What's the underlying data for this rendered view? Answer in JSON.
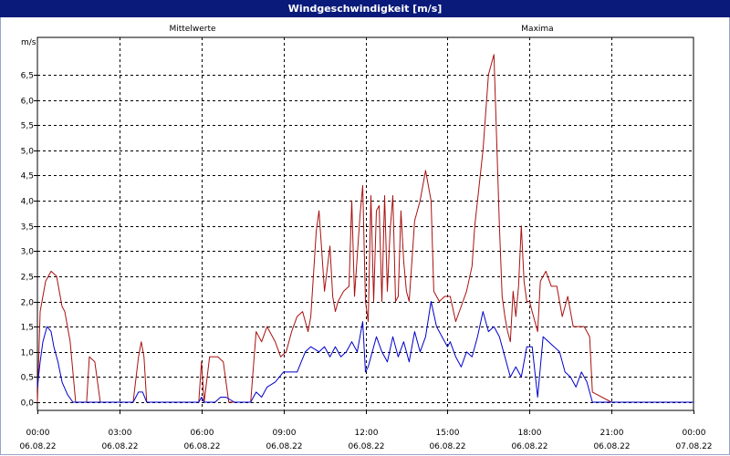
{
  "window": {
    "title": "Windgeschwindigkeit [m/s]"
  },
  "chart_data": {
    "type": "line",
    "title": "Windgeschwindigkeit [m/s]",
    "ylabel": "m/s",
    "ylim": [
      0,
      7
    ],
    "xlim": [
      0,
      24
    ],
    "grid": true,
    "y_ticks": [
      "0,0",
      "0,5",
      "1,0",
      "1,5",
      "2,0",
      "2,5",
      "3,0",
      "3,5",
      "4,0",
      "4,5",
      "5,0",
      "5,5",
      "6,0",
      "6,5"
    ],
    "x_ticks": [
      {
        "time": "00:00",
        "date": "06.08.22"
      },
      {
        "time": "03:00",
        "date": "06.08.22"
      },
      {
        "time": "06:00",
        "date": "06.08.22"
      },
      {
        "time": "09:00",
        "date": "06.08.22"
      },
      {
        "time": "12:00",
        "date": "06.08.22"
      },
      {
        "time": "15:00",
        "date": "06.08.22"
      },
      {
        "time": "18:00",
        "date": "06.08.22"
      },
      {
        "time": "21:00",
        "date": "06.08.22"
      },
      {
        "time": "00:00",
        "date": "07.08.22"
      }
    ],
    "series": [
      {
        "name": "Mittelwerte",
        "color": "#0000cc",
        "x": [
          0,
          0.1,
          0.2,
          0.35,
          0.5,
          0.6,
          0.75,
          0.9,
          1.1,
          1.3,
          1.5,
          1.7,
          2.0,
          2.5,
          3.0,
          3.5,
          3.7,
          3.85,
          4.0,
          4.2,
          4.5,
          5.0,
          5.5,
          5.9,
          6.0,
          6.1,
          6.5,
          6.7,
          6.9,
          7.2,
          7.5,
          7.8,
          8.0,
          8.2,
          8.4,
          8.7,
          9.0,
          9.2,
          9.5,
          9.8,
          10.0,
          10.3,
          10.5,
          10.7,
          10.9,
          11.1,
          11.3,
          11.5,
          11.7,
          11.8,
          11.9,
          12.0,
          12.1,
          12.2,
          12.4,
          12.6,
          12.8,
          13.0,
          13.2,
          13.4,
          13.6,
          13.8,
          14.0,
          14.2,
          14.4,
          14.6,
          14.8,
          15.0,
          15.1,
          15.3,
          15.5,
          15.7,
          15.9,
          16.1,
          16.3,
          16.5,
          16.7,
          16.9,
          17.1,
          17.3,
          17.5,
          17.7,
          17.9,
          18.1,
          18.3,
          18.5,
          18.7,
          18.9,
          19.1,
          19.3,
          19.5,
          19.7,
          19.9,
          20.0,
          20.1,
          20.3,
          21.0,
          22.0,
          23.0,
          24.0
        ],
        "values": [
          0.3,
          0.8,
          1.2,
          1.5,
          1.4,
          1.1,
          0.8,
          0.4,
          0.15,
          0.0,
          0.0,
          0.0,
          0.0,
          0.0,
          0.0,
          0.0,
          0.2,
          0.2,
          0.0,
          0.0,
          0.0,
          0.0,
          0.0,
          0.0,
          0.1,
          0.0,
          0.0,
          0.1,
          0.1,
          0.0,
          0.0,
          0.0,
          0.2,
          0.1,
          0.3,
          0.4,
          0.6,
          0.6,
          0.6,
          1.0,
          1.1,
          1.0,
          1.1,
          0.9,
          1.1,
          0.9,
          1.0,
          1.2,
          1.0,
          1.3,
          1.6,
          0.6,
          0.7,
          0.9,
          1.3,
          1.0,
          0.8,
          1.3,
          0.9,
          1.2,
          0.8,
          1.4,
          1.0,
          1.3,
          2.0,
          1.5,
          1.3,
          1.1,
          1.2,
          0.9,
          0.7,
          1.0,
          0.9,
          1.3,
          1.8,
          1.4,
          1.5,
          1.3,
          0.9,
          0.5,
          0.7,
          0.5,
          1.1,
          1.1,
          0.1,
          1.3,
          1.2,
          1.1,
          1.0,
          0.6,
          0.5,
          0.3,
          0.6,
          0.5,
          0.4,
          0.0,
          0.0,
          0.0,
          0.0,
          0.0
        ]
      },
      {
        "name": "Maxima",
        "color": "#aa1111",
        "x": [
          0,
          0.1,
          0.3,
          0.5,
          0.7,
          0.9,
          1.0,
          1.2,
          1.4,
          1.6,
          1.8,
          1.9,
          2.1,
          2.3,
          2.5,
          3.0,
          3.5,
          3.7,
          3.8,
          3.9,
          4.0,
          4.2,
          4.5,
          5.0,
          5.5,
          5.9,
          6.0,
          6.1,
          6.3,
          6.6,
          6.8,
          7.0,
          7.2,
          7.4,
          7.6,
          7.8,
          8.0,
          8.2,
          8.4,
          8.5,
          8.7,
          8.9,
          9.1,
          9.3,
          9.5,
          9.7,
          9.9,
          10.0,
          10.2,
          10.3,
          10.5,
          10.7,
          10.8,
          10.9,
          11.0,
          11.2,
          11.4,
          11.5,
          11.6,
          11.8,
          11.9,
          12.0,
          12.1,
          12.2,
          12.3,
          12.4,
          12.5,
          12.6,
          12.7,
          12.8,
          12.9,
          13.0,
          13.1,
          13.2,
          13.3,
          13.4,
          13.5,
          13.6,
          13.8,
          14.0,
          14.2,
          14.4,
          14.5,
          14.7,
          14.9,
          15.1,
          15.3,
          15.5,
          15.7,
          15.9,
          16.0,
          16.1,
          16.2,
          16.3,
          16.5,
          16.7,
          16.8,
          16.9,
          17.0,
          17.1,
          17.2,
          17.3,
          17.4,
          17.5,
          17.6,
          17.7,
          17.8,
          17.9,
          18.0,
          18.1,
          18.2,
          18.3,
          18.4,
          18.6,
          18.8,
          19.0,
          19.2,
          19.4,
          19.6,
          19.8,
          20.0,
          20.2,
          20.3,
          21.0,
          22.0,
          23.0,
          24.0
        ],
        "values": [
          0.0,
          1.8,
          2.4,
          2.6,
          2.5,
          1.9,
          1.8,
          1.2,
          0.0,
          0.0,
          0.0,
          0.9,
          0.8,
          0.0,
          0.0,
          0.0,
          0.0,
          0.9,
          1.2,
          0.9,
          0.0,
          0.0,
          0.0,
          0.0,
          0.0,
          0.0,
          0.8,
          0.0,
          0.9,
          0.9,
          0.8,
          0.0,
          0.0,
          0.0,
          0.0,
          0.0,
          1.4,
          1.2,
          1.5,
          1.4,
          1.2,
          0.9,
          1.0,
          1.4,
          1.7,
          1.8,
          1.4,
          1.7,
          3.4,
          3.8,
          2.2,
          3.1,
          2.1,
          1.8,
          2.0,
          2.2,
          2.3,
          4.0,
          2.1,
          3.7,
          4.3,
          2.0,
          1.6,
          4.1,
          2.0,
          3.8,
          3.9,
          2.0,
          4.1,
          2.2,
          3.4,
          4.1,
          2.0,
          2.1,
          3.8,
          2.8,
          2.2,
          2.0,
          3.6,
          4.0,
          4.6,
          4.0,
          2.2,
          2.0,
          2.1,
          2.1,
          1.6,
          1.9,
          2.2,
          2.7,
          3.5,
          4.0,
          4.5,
          5.0,
          6.5,
          6.9,
          5.2,
          3.5,
          2.1,
          1.7,
          1.4,
          1.2,
          2.2,
          1.7,
          2.3,
          3.5,
          2.4,
          2.0,
          2.0,
          1.8,
          1.6,
          1.4,
          2.4,
          2.6,
          2.3,
          2.3,
          1.7,
          2.1,
          1.5,
          1.5,
          1.5,
          1.3,
          0.2,
          0.0,
          0.0,
          0.0,
          0.0
        ]
      }
    ]
  }
}
